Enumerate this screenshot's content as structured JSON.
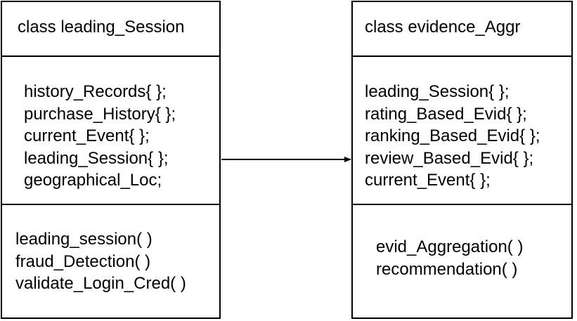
{
  "classes": [
    {
      "name": "class leading_Session",
      "attributes": [
        "history_Records{ };",
        "purchase_History{ };",
        "current_Event{ };",
        "leading_Session{ };",
        "geographical_Loc;"
      ],
      "methods": [
        "leading_session( )",
        "fraud_Detection( )",
        "validate_Login_Cred( )"
      ]
    },
    {
      "name": "class evidence_Aggr",
      "attributes": [
        "leading_Session{ };",
        "rating_Based_Evid{ };",
        "ranking_Based_Evid{ };",
        "review_Based_Evid{ };",
        "current_Event{ };"
      ],
      "methods": [
        "evid_Aggregation( )",
        "recommendation( )"
      ]
    }
  ],
  "relationships": [
    {
      "from": "class leading_Session",
      "to": "class evidence_Aggr",
      "kind": "directed-association"
    }
  ],
  "colors": {
    "line": "#000000",
    "background": "#ffffff",
    "text": "#000000"
  }
}
